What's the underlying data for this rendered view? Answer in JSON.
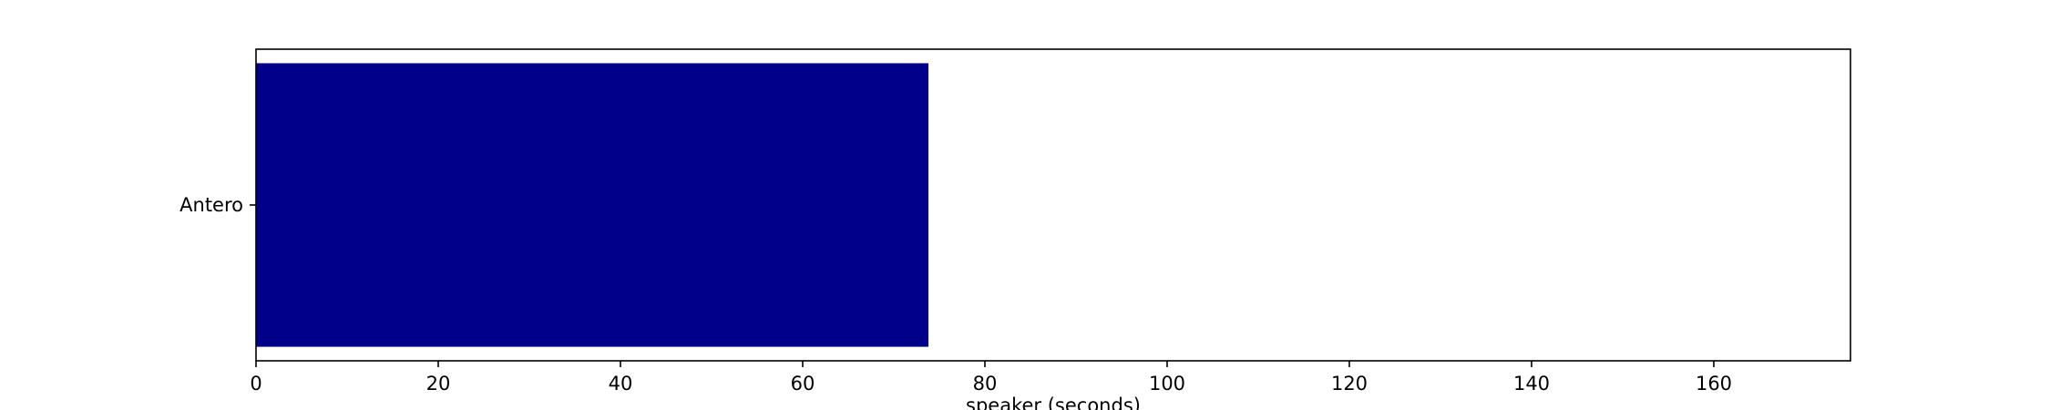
{
  "chart_data": {
    "type": "bar",
    "orientation": "horizontal",
    "categories": [
      "Antero"
    ],
    "values": [
      73.8
    ],
    "xlabel": "speaker (seconds)",
    "ylabel": "",
    "xlim": [
      0,
      175
    ],
    "xticks": [
      0,
      20,
      40,
      60,
      80,
      100,
      120,
      140,
      160
    ],
    "grid": false,
    "bar_color": "#00008b"
  }
}
